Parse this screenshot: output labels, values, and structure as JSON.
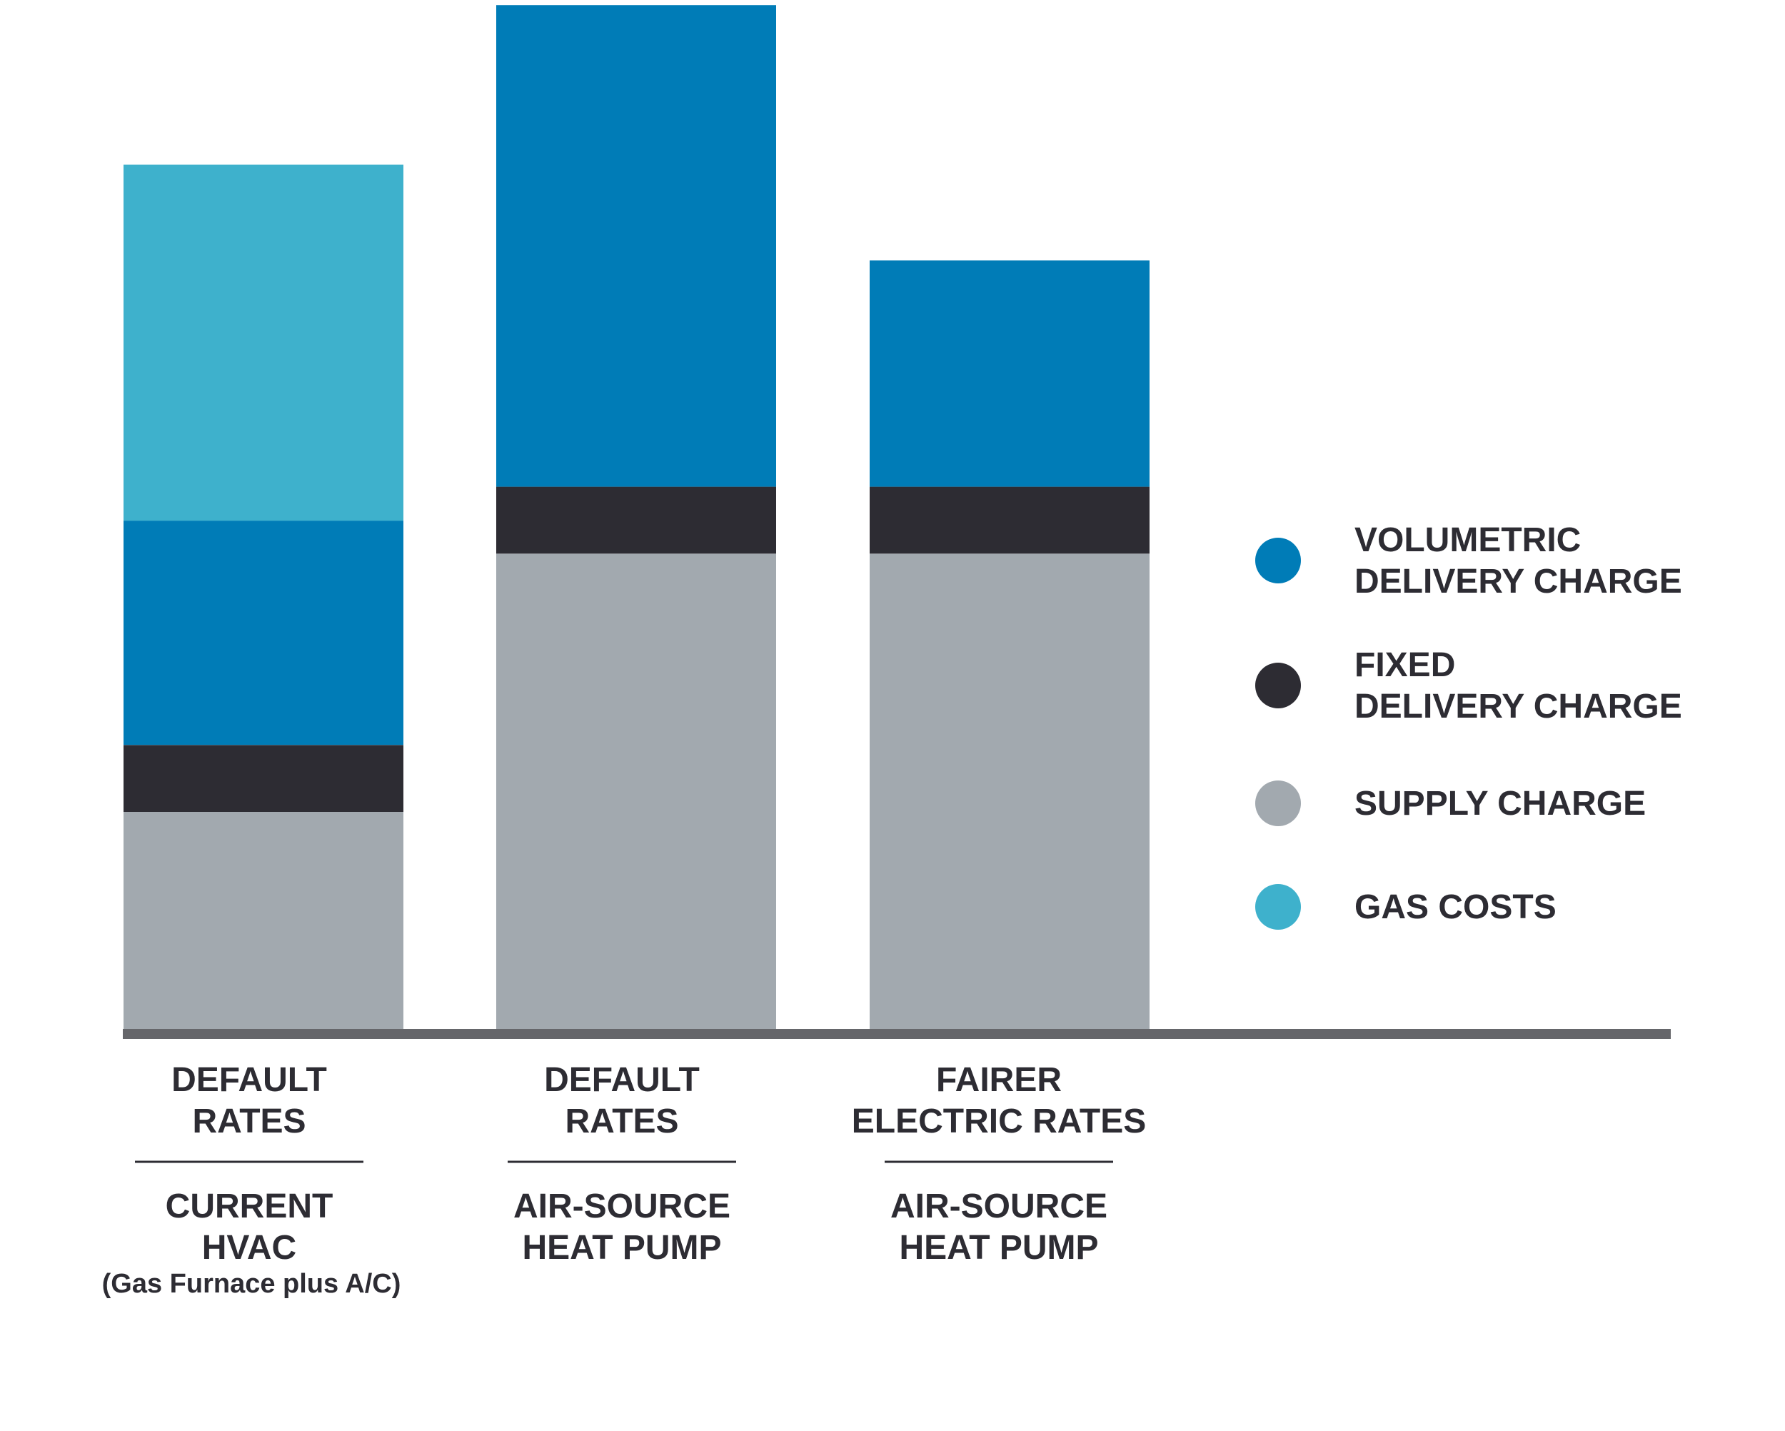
{
  "chart_data": {
    "type": "bar",
    "stacked": true,
    "title": "",
    "xlabel": "",
    "ylabel": "",
    "ylim": [
      0,
      100
    ],
    "grid": false,
    "legend_position": "right",
    "categories": [
      {
        "rate": [
          "DEFAULT",
          "RATES"
        ],
        "system": [
          "CURRENT",
          "HVAC"
        ],
        "note": "(Gas Furnace plus A/C)"
      },
      {
        "rate": [
          "DEFAULT",
          "RATES"
        ],
        "system": [
          "AIR-SOURCE",
          "HEAT PUMP"
        ],
        "note": ""
      },
      {
        "rate": [
          "FAIRER",
          "ELECTRIC RATES"
        ],
        "system": [
          "AIR-SOURCE",
          "HEAT PUMP"
        ],
        "note": ""
      }
    ],
    "series": [
      {
        "key": "supply",
        "name": "SUPPLY CHARGE",
        "legend_lines": [
          "SUPPLY CHARGE"
        ],
        "color": "#a2a9af",
        "values": [
          21.1,
          46.2,
          46.2
        ]
      },
      {
        "key": "fixed",
        "name": "FIXED DELIVERY CHARGE",
        "legend_lines": [
          "FIXED",
          "DELIVERY CHARGE"
        ],
        "color": "#2d2c33",
        "values": [
          6.5,
          6.5,
          6.5
        ]
      },
      {
        "key": "volumetric",
        "name": "VOLUMETRIC DELIVERY CHARGE",
        "legend_lines": [
          "VOLUMETRIC",
          "DELIVERY CHARGE"
        ],
        "color": "#007cb7",
        "values": [
          21.8,
          46.8,
          22.0
        ]
      },
      {
        "key": "gas",
        "name": "GAS COSTS",
        "legend_lines": [
          "GAS COSTS"
        ],
        "color": "#3eb1cc",
        "values": [
          34.6,
          0,
          0
        ]
      }
    ],
    "legend_order": [
      "volumetric",
      "fixed",
      "supply",
      "gas"
    ]
  }
}
